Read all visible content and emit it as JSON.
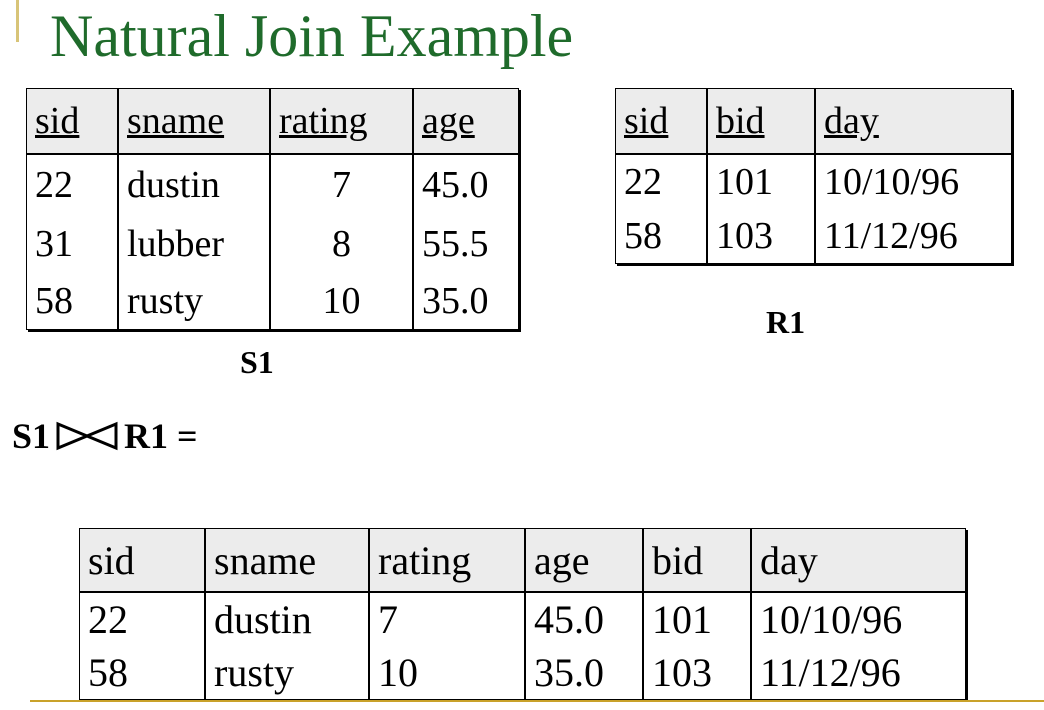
{
  "title": "Natural Join Example",
  "title_color": "#1f6b2b",
  "s1": {
    "label": "S1",
    "columns": [
      "sid",
      "sname",
      "rating",
      "age"
    ],
    "rows": [
      [
        "22",
        "dustin",
        "7",
        "45.0"
      ],
      [
        "31",
        "lubber",
        "8",
        "55.5"
      ],
      [
        "58",
        "rusty",
        "10",
        "35.0"
      ]
    ]
  },
  "r1": {
    "label": "R1",
    "columns": [
      "sid",
      "bid",
      "day"
    ],
    "rows": [
      [
        "22",
        "101",
        "10/10/96"
      ],
      [
        "58",
        "103",
        "11/12/96"
      ]
    ]
  },
  "join_expression": {
    "left": "S1",
    "operator_icon": "bowtie-join-icon",
    "right": "R1 ="
  },
  "result": {
    "columns": [
      "sid",
      "sname",
      "rating",
      "age",
      "bid",
      "day"
    ],
    "rows": [
      [
        "22",
        "dustin",
        "7",
        "45.0",
        "101",
        "10/10/96"
      ],
      [
        "58",
        "rusty",
        "10",
        "35.0",
        "103",
        "11/12/96"
      ]
    ]
  }
}
